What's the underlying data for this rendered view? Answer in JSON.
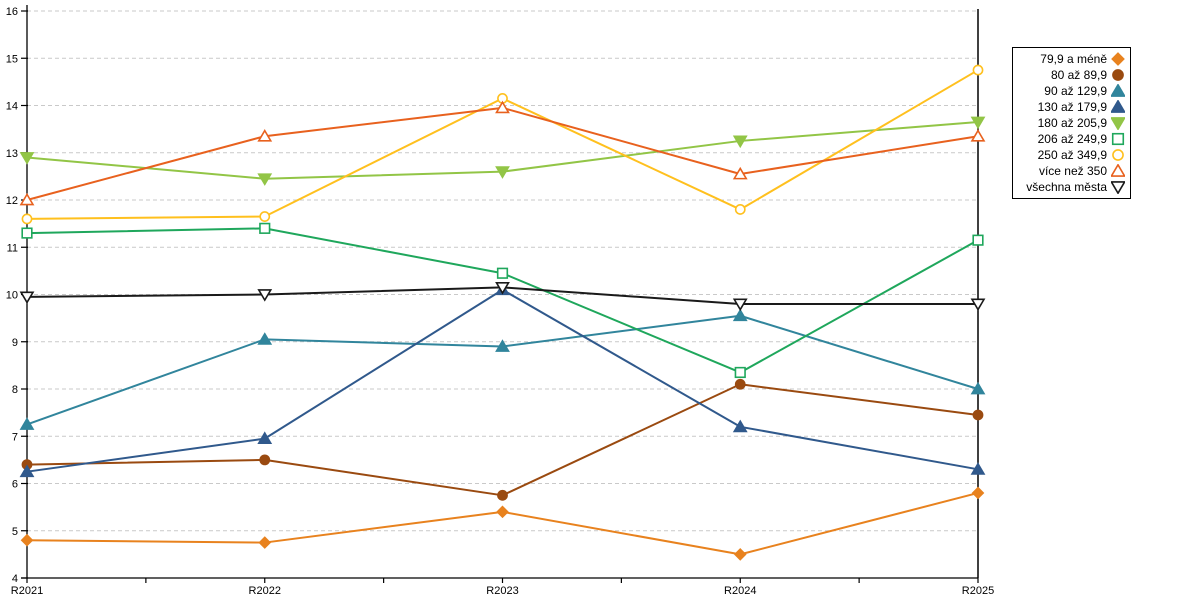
{
  "chart_data": {
    "type": "line",
    "title": "",
    "xlabel": "",
    "ylabel": "",
    "x_categories": [
      "R2021",
      "R2022",
      "R2023",
      "R2024",
      "R2025"
    ],
    "ylim": [
      4,
      16
    ],
    "y_ticks": [
      4,
      5,
      6,
      7,
      8,
      9,
      10,
      11,
      12,
      13,
      14,
      15,
      16
    ],
    "grid": "horizontal-dashed",
    "gridline_color": "#c9c9c9",
    "axis_color": "#000000",
    "legend_position": "right",
    "series": [
      {
        "name": "79,9 a méně",
        "marker": "diamond-filled",
        "color": "#E8821E",
        "values": [
          4.8,
          4.75,
          5.4,
          4.5,
          5.8
        ]
      },
      {
        "name": "80 až 89,9",
        "marker": "circle-filled",
        "color": "#9A4A10",
        "values": [
          6.4,
          6.5,
          5.75,
          8.1,
          7.45
        ]
      },
      {
        "name": "90 až 129,9",
        "marker": "triangle-up-filled",
        "color": "#31859C",
        "values": [
          7.25,
          9.05,
          8.9,
          9.55,
          8.0
        ]
      },
      {
        "name": "130 až 179,9",
        "marker": "triangle-up-filled",
        "color": "#30598C",
        "values": [
          6.25,
          6.95,
          10.1,
          7.2,
          6.3
        ]
      },
      {
        "name": "180 až 205,9",
        "marker": "triangle-down-filled",
        "color": "#92C546",
        "values": [
          12.9,
          12.45,
          12.6,
          13.25,
          13.65
        ]
      },
      {
        "name": "206 až 249,9",
        "marker": "square-open",
        "color": "#1FA75C",
        "values": [
          11.3,
          11.4,
          10.45,
          8.35,
          11.15
        ]
      },
      {
        "name": "250 až 349,9",
        "marker": "circle-open",
        "color": "#FFC01E",
        "values": [
          11.6,
          11.65,
          14.15,
          11.8,
          14.75
        ]
      },
      {
        "name": "více než 350",
        "marker": "triangle-up-open",
        "color": "#E8611E",
        "values": [
          12.0,
          13.35,
          13.95,
          12.55,
          13.35
        ]
      },
      {
        "name": "všechna města",
        "marker": "triangle-down-open",
        "color": "#1A1A1A",
        "values": [
          9.95,
          10.0,
          10.15,
          9.8,
          9.8
        ]
      }
    ]
  }
}
